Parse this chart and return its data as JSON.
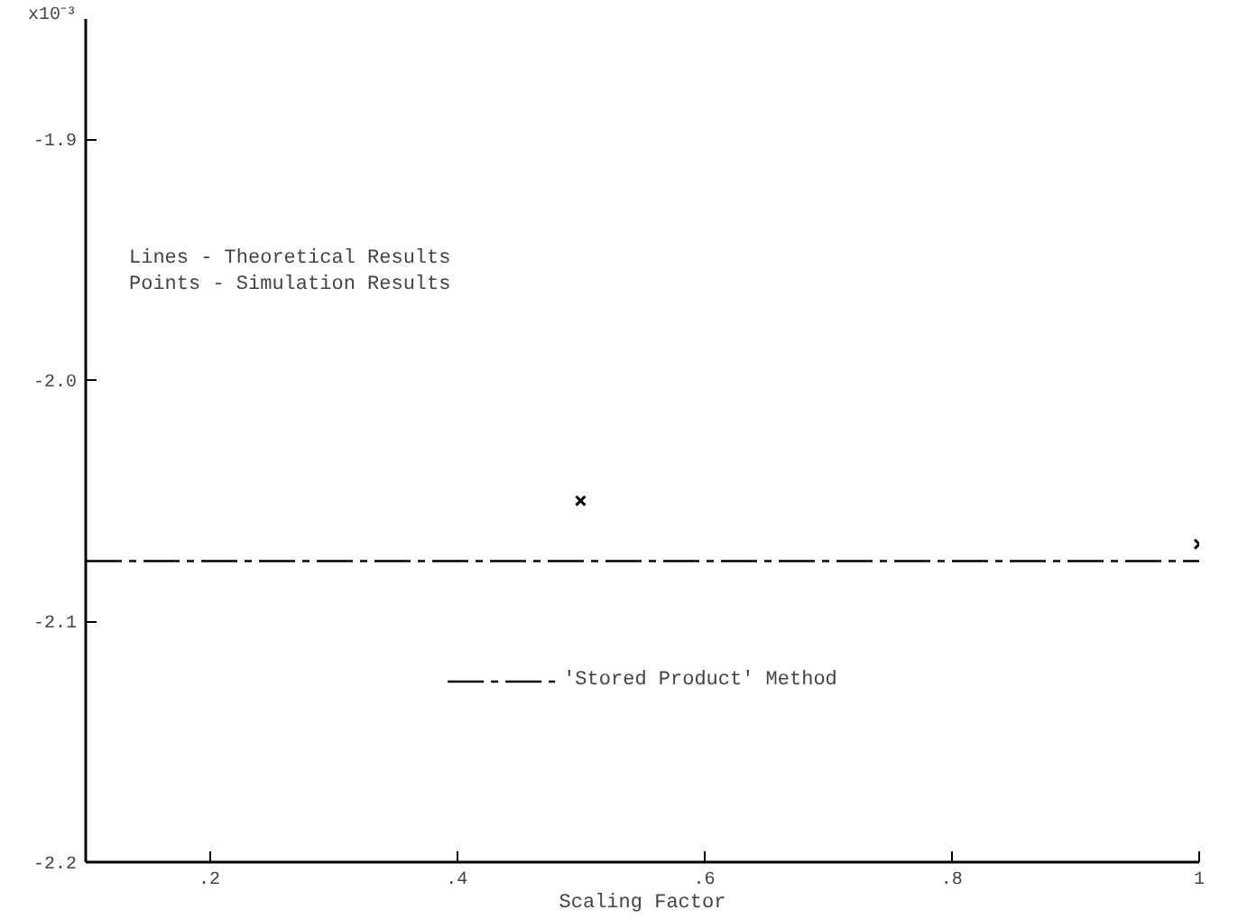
{
  "chart_data": {
    "type": "line",
    "xlabel": "Scaling Factor",
    "annotations": [
      "x10⁻³",
      "Lines  - Theoretical Results\nPoints - Simulation  Results"
    ],
    "xlim": [
      0.1,
      1.0
    ],
    "xticks": [
      {
        "value": 0.2,
        "label": ".2"
      },
      {
        "value": 0.4,
        "label": ".4"
      },
      {
        "value": 0.6,
        "label": ".6"
      },
      {
        "value": 0.8,
        "label": ".8"
      },
      1
    ],
    "ylim": [
      -2.2,
      -1.85
    ],
    "yticks": [
      {
        "value": -2.2,
        "label": "-2.2"
      },
      {
        "value": -2.1,
        "label": "-2.1"
      },
      {
        "value": -2.0,
        "label": "-2.0"
      },
      {
        "value": -1.9,
        "label": "-1.9"
      }
    ],
    "grid": false,
    "legend": "bottom",
    "series": [
      {
        "name": "'Stored Product' Method",
        "line_style": "dashed",
        "color": "#000000",
        "x": [
          0.1,
          1.0
        ],
        "values": [
          -2.075,
          -2.075
        ]
      },
      {
        "type": "scatter",
        "marker": "cross",
        "color": "#000000",
        "x": [
          0.5,
          1.0
        ],
        "values": [
          -2.05,
          -2.068
        ]
      }
    ]
  }
}
